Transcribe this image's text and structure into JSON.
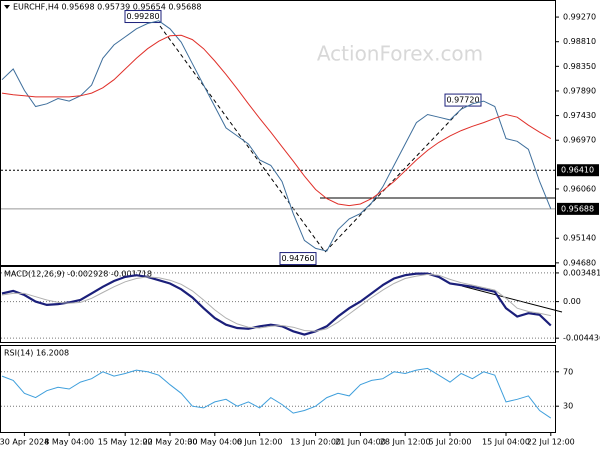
{
  "chart_data": [
    {
      "type": "line",
      "title": "EURCHF,H4  0.95698 0.95739 0.95654 0.95688",
      "watermark": "ActionForex.com",
      "ylim": [
        0.9464,
        0.9957
      ],
      "yticks": [
        {
          "value": 0.9927,
          "label": "0.99270"
        },
        {
          "value": 0.9881,
          "label": "0.98810"
        },
        {
          "value": 0.9835,
          "label": "0.98350"
        },
        {
          "value": 0.9789,
          "label": "0.97890"
        },
        {
          "value": 0.9743,
          "label": "0.97430"
        },
        {
          "value": 0.9697,
          "label": "0.96970"
        },
        {
          "value": 0.9606,
          "label": "0.96060"
        },
        {
          "value": 0.9514,
          "label": "0.95140"
        },
        {
          "value": 0.9468,
          "label": "0.94680"
        }
      ],
      "price_lines": [
        {
          "value": 0.9641,
          "label": "0.96410"
        },
        {
          "value": 0.95688,
          "label": "0.95688"
        }
      ],
      "annotations": [
        {
          "value": 0.9928,
          "label": "0.99280"
        },
        {
          "value": 0.9772,
          "label": "0.97720"
        },
        {
          "value": 0.9476,
          "label": "0.94760"
        }
      ],
      "grid": false,
      "series": [
        {
          "name": "EURCHF",
          "color": "#3f6f9c",
          "values": [
            0.981,
            0.983,
            0.979,
            0.976,
            0.9765,
            0.9775,
            0.977,
            0.978,
            0.98,
            0.985,
            0.9875,
            0.989,
            0.9905,
            0.9915,
            0.992,
            0.9905,
            0.988,
            0.984,
            0.98,
            0.976,
            0.972,
            0.9705,
            0.969,
            0.966,
            0.965,
            0.962,
            0.956,
            0.951,
            0.9495,
            0.949,
            0.953,
            0.955,
            0.956,
            0.958,
            0.961,
            0.965,
            0.969,
            0.973,
            0.9745,
            0.974,
            0.9735,
            0.9755,
            0.9765,
            0.977,
            0.976,
            0.97,
            0.9695,
            0.968,
            0.962,
            0.9569
          ]
        },
        {
          "name": "MA",
          "color": "#e0302a",
          "values": [
            0.9785,
            0.9782,
            0.978,
            0.9778,
            0.9778,
            0.9778,
            0.9778,
            0.978,
            0.9785,
            0.9795,
            0.981,
            0.983,
            0.985,
            0.9868,
            0.9882,
            0.9892,
            0.9893,
            0.9885,
            0.9868,
            0.9845,
            0.982,
            0.9793,
            0.9765,
            0.9738,
            0.9712,
            0.9685,
            0.9658,
            0.963,
            0.9605,
            0.9588,
            0.9578,
            0.9575,
            0.9578,
            0.9588,
            0.9603,
            0.962,
            0.964,
            0.966,
            0.9678,
            0.9693,
            0.9705,
            0.9715,
            0.9723,
            0.973,
            0.9738,
            0.9745,
            0.974,
            0.9725,
            0.9712,
            0.97
          ]
        }
      ]
    },
    {
      "type": "line",
      "title": "MACD(12,26,9) -0.002928 -0.001718",
      "ylim": [
        -0.0049,
        0.0042
      ],
      "yticks": [
        0.003481,
        {
          "value": 0,
          "label": "0.00"
        },
        -0.004436
      ],
      "grid": true,
      "series": [
        {
          "name": "MACD",
          "color": "#1b1f7a",
          "values": [
            0.001,
            0.0013,
            0.0008,
            0.0,
            -0.0004,
            -0.0003,
            -0.0001,
            0.0002,
            0.001,
            0.0018,
            0.0025,
            0.003,
            0.0032,
            0.003,
            0.0026,
            0.0022,
            0.0015,
            0.0005,
            -0.0008,
            -0.002,
            -0.0028,
            -0.0032,
            -0.0033,
            -0.003,
            -0.0028,
            -0.003,
            -0.0036,
            -0.004,
            -0.0036,
            -0.003,
            -0.0018,
            -0.0008,
            0.0,
            0.001,
            0.002,
            0.0028,
            0.0032,
            0.0034,
            0.0034,
            0.003,
            0.0022,
            0.002,
            0.0018,
            0.0015,
            0.0012,
            -0.0008,
            -0.0018,
            -0.0014,
            -0.0016,
            -0.0029
          ]
        },
        {
          "name": "Signal",
          "color": "#b0b0b0",
          "values": [
            0.0008,
            0.001,
            0.001,
            0.0006,
            0.0002,
            -0.0001,
            -0.0002,
            -0.0001,
            0.0004,
            0.0011,
            0.0018,
            0.0024,
            0.0028,
            0.003,
            0.0029,
            0.0026,
            0.0021,
            0.0013,
            0.0002,
            -0.001,
            -0.002,
            -0.0027,
            -0.0031,
            -0.0032,
            -0.003,
            -0.0029,
            -0.0031,
            -0.0035,
            -0.0036,
            -0.0033,
            -0.0025,
            -0.0015,
            -0.0005,
            0.0005,
            0.0014,
            0.0022,
            0.0028,
            0.0031,
            0.0033,
            0.0032,
            0.0027,
            0.0023,
            0.002,
            0.0017,
            0.0014,
            0.0004,
            -0.0008,
            -0.0012,
            -0.0014,
            -0.0017
          ]
        }
      ]
    },
    {
      "type": "line",
      "title": "RSI(14) 16.2008",
      "ylim": [
        0,
        100
      ],
      "yticks": [
        70,
        30
      ],
      "grid": true,
      "categories": [
        null,
        null,
        "30 Apr 2024",
        null,
        null,
        null,
        "8 May 04:00",
        null,
        null,
        null,
        null,
        "15 May 12:00",
        null,
        null,
        null,
        "22 May 20:00",
        null,
        null,
        null,
        "30 May 04:00",
        null,
        null,
        null,
        "6 Jun 12:00",
        null,
        null,
        null,
        null,
        "13 Jun 20:00",
        null,
        null,
        null,
        "21 Jun 04:00",
        null,
        null,
        null,
        "28 Jun 12:00",
        null,
        null,
        null,
        "5 Jul 20:00",
        null,
        null,
        null,
        null,
        "15 Jul 04:00",
        null,
        null,
        null,
        "22 Jul 12:00"
      ],
      "series": [
        {
          "name": "RSI",
          "color": "#3f9fdc",
          "values": [
            65,
            60,
            45,
            40,
            48,
            52,
            50,
            58,
            62,
            70,
            65,
            68,
            72,
            70,
            66,
            55,
            45,
            30,
            28,
            35,
            38,
            30,
            35,
            28,
            40,
            32,
            22,
            25,
            30,
            40,
            45,
            42,
            55,
            60,
            62,
            70,
            68,
            72,
            74,
            66,
            58,
            68,
            62,
            70,
            66,
            35,
            38,
            42,
            25,
            16.2
          ]
        }
      ]
    }
  ]
}
